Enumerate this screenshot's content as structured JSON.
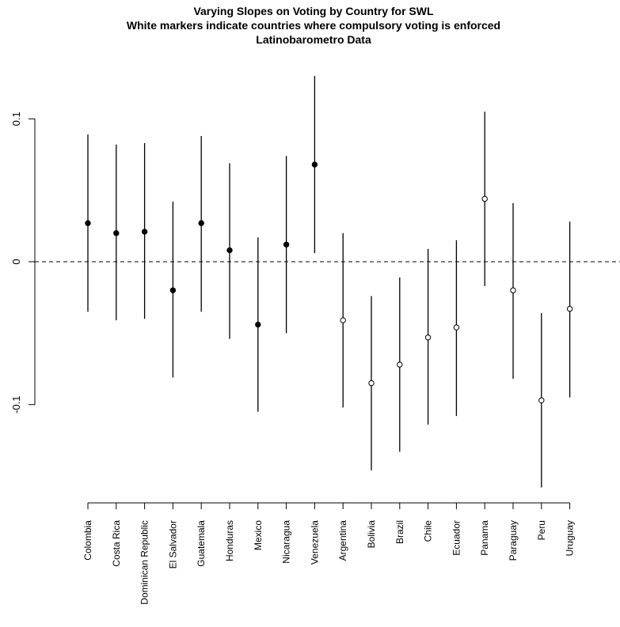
{
  "chart_data": {
    "type": "scatter",
    "title": "Varying Slopes on Voting by Country for SWL",
    "subtitle": "White markers indicate countries where compulsory voting is enforced",
    "source_line": "Latinobarometro Data",
    "categories": [
      "Colombia",
      "Costa Rica",
      "Dominican Republic",
      "El Salvador",
      "Guatemala",
      "Honduras",
      "Mexico",
      "Nicaragua",
      "Venezuela",
      "Argentina",
      "Bolivia",
      "Brazil",
      "Chile",
      "Ecuador",
      "Panama",
      "Paraguay",
      "Peru",
      "Uruguay"
    ],
    "series": [
      {
        "estimates": [
          0.027,
          0.02,
          0.021,
          -0.02,
          0.027,
          0.008,
          -0.044,
          0.012,
          0.068,
          -0.041,
          -0.085,
          -0.072,
          -0.053,
          -0.046,
          0.044,
          -0.02,
          -0.097,
          -0.033
        ],
        "lower": [
          -0.035,
          -0.041,
          -0.04,
          -0.081,
          -0.035,
          -0.054,
          -0.105,
          -0.05,
          0.006,
          -0.102,
          -0.146,
          -0.133,
          -0.114,
          -0.108,
          -0.017,
          -0.082,
          -0.158,
          -0.095
        ],
        "upper": [
          0.089,
          0.082,
          0.083,
          0.042,
          0.088,
          0.069,
          0.017,
          0.074,
          0.13,
          0.02,
          -0.024,
          -0.011,
          0.009,
          0.015,
          0.105,
          0.041,
          -0.036,
          0.028
        ],
        "compulsory_voting_enforced": [
          false,
          false,
          false,
          false,
          false,
          false,
          false,
          false,
          false,
          true,
          true,
          true,
          true,
          true,
          true,
          true,
          true,
          true
        ]
      }
    ],
    "yticks": [
      0.1,
      0,
      -0.1
    ],
    "ytick_labels": [
      "0.1",
      "0",
      "-0.1"
    ],
    "ylim": [
      -0.165,
      0.135
    ],
    "reference_line": 0,
    "grid": false,
    "colors": {
      "filled_marker": "#000000",
      "open_marker_fill": "#ffffff",
      "line": "#000000"
    }
  }
}
